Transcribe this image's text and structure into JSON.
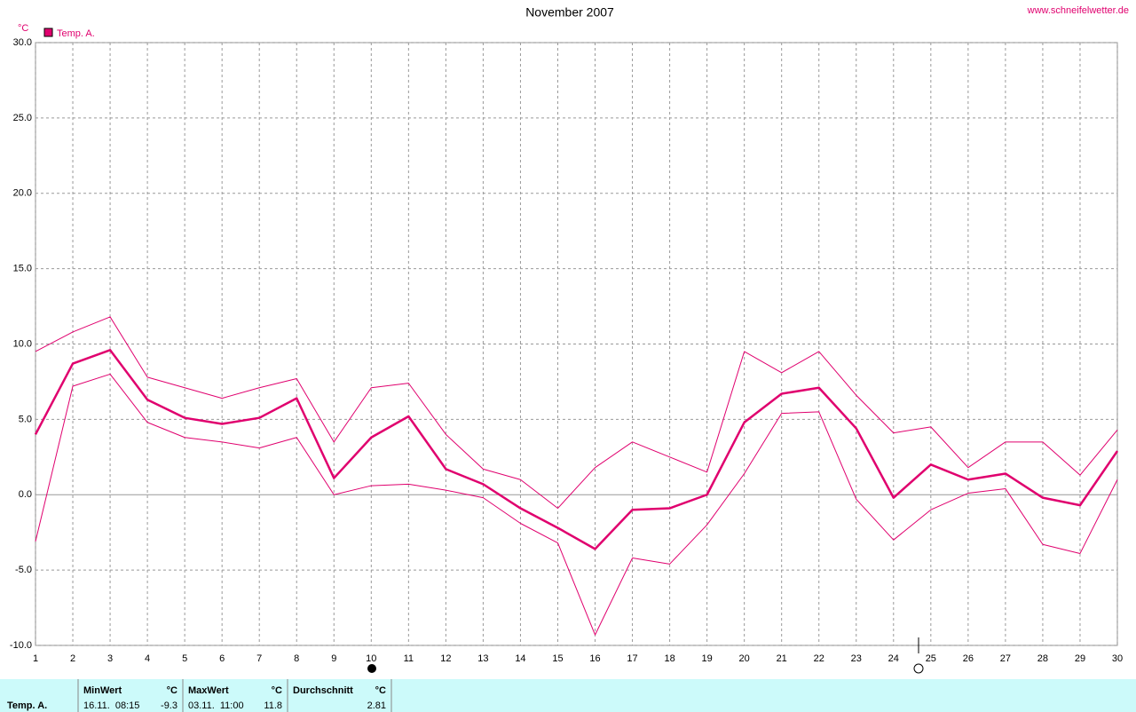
{
  "chart_data": {
    "type": "line",
    "title": "November 2007",
    "source": "www.schneifelwetter.de",
    "y_unit": "°C",
    "x": [
      1,
      2,
      3,
      4,
      5,
      6,
      7,
      8,
      9,
      10,
      11,
      12,
      13,
      14,
      15,
      16,
      17,
      18,
      19,
      20,
      21,
      22,
      23,
      24,
      25,
      26,
      27,
      28,
      29,
      30
    ],
    "xlim": [
      1,
      30
    ],
    "xticks": [
      1,
      2,
      3,
      4,
      5,
      6,
      7,
      8,
      9,
      10,
      11,
      12,
      13,
      14,
      15,
      16,
      17,
      18,
      19,
      20,
      21,
      22,
      23,
      24,
      25,
      26,
      27,
      28,
      29,
      30
    ],
    "ylim": [
      -10,
      30
    ],
    "yticks": [
      {
        "value": -10,
        "label": "-10.0"
      },
      {
        "value": -5,
        "label": "-5.0"
      },
      {
        "value": 0,
        "label": "0.0"
      },
      {
        "value": 5,
        "label": "5.0"
      },
      {
        "value": 10,
        "label": "10.0"
      },
      {
        "value": 15,
        "label": "15.0"
      },
      {
        "value": 20,
        "label": "20.0"
      },
      {
        "value": 25,
        "label": "25.0"
      },
      {
        "value": 30,
        "label": "30.0"
      }
    ],
    "grid": true,
    "series": [
      {
        "name": "Temp. A.",
        "color": "#e0006e",
        "width": 2.5,
        "values": [
          4.0,
          8.7,
          9.6,
          6.3,
          5.1,
          4.7,
          5.1,
          6.4,
          1.1,
          3.8,
          5.2,
          1.7,
          0.7,
          -0.9,
          -2.2,
          -3.6,
          -1.0,
          -0.9,
          0.0,
          4.8,
          6.7,
          7.1,
          4.4,
          -0.2,
          2.0,
          1.0,
          1.4,
          -0.2,
          -0.7,
          2.9
        ]
      },
      {
        "color": "#e0006e",
        "width": 1,
        "values": [
          9.5,
          10.8,
          11.8,
          7.8,
          7.1,
          6.4,
          7.1,
          7.7,
          3.5,
          7.1,
          7.4,
          4.0,
          1.7,
          1.0,
          -0.9,
          1.8,
          3.5,
          2.5,
          1.5,
          9.5,
          8.1,
          9.5,
          6.6,
          4.1,
          4.5,
          1.8,
          3.5,
          3.5,
          1.3,
          4.3
        ]
      },
      {
        "color": "#e0006e",
        "width": 1,
        "values": [
          -3.1,
          7.2,
          8.0,
          4.8,
          3.8,
          3.5,
          3.1,
          3.8,
          0.0,
          0.6,
          0.7,
          0.3,
          -0.2,
          -1.9,
          -3.2,
          -9.3,
          -4.2,
          -4.6,
          -2.0,
          1.4,
          5.4,
          5.5,
          -0.3,
          -3.0,
          -1.0,
          0.1,
          0.4,
          -3.3,
          -3.9,
          1.0
        ]
      }
    ]
  },
  "stats": {
    "label": "Temp. A.",
    "columns": [
      {
        "title": "MinWert",
        "unit": "°C",
        "time": "16.11.  08:15",
        "value": -9.3
      },
      {
        "title": "MaxWert",
        "unit": "°C",
        "time": "03.11.  11:00",
        "value": 11.8
      },
      {
        "title": "Durchschnitt",
        "unit": "°C",
        "value": 2.81
      }
    ]
  }
}
